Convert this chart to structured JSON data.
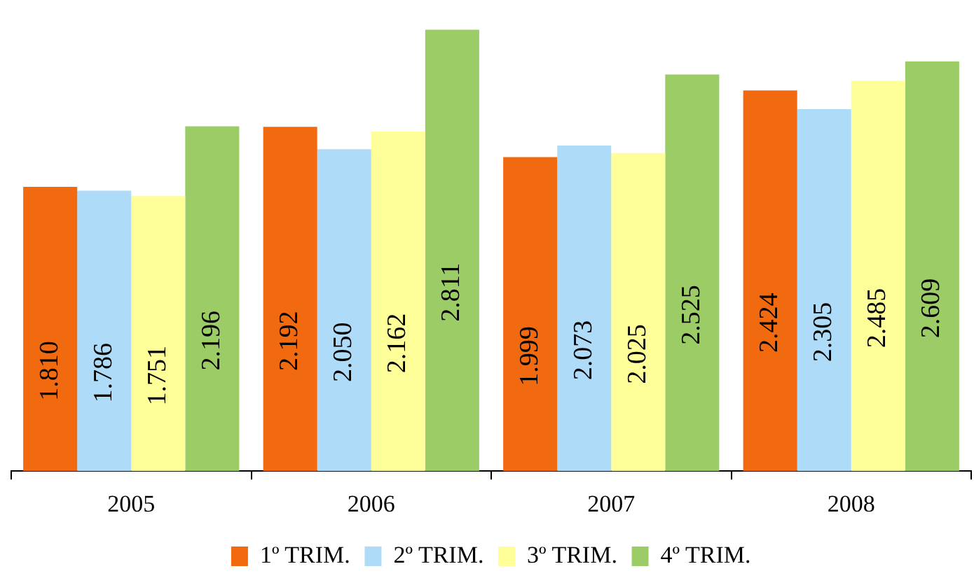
{
  "chart_data": {
    "type": "bar",
    "categories": [
      "2005",
      "2006",
      "2007",
      "2008"
    ],
    "series": [
      {
        "name": "1º TRIM.",
        "color": "#f26a10",
        "values": [
          1810,
          2192,
          1999,
          2424
        ],
        "value_labels": [
          "1.810",
          "2.192",
          "1.999",
          "2.424"
        ]
      },
      {
        "name": "2º TRIM.",
        "color": "#aedcf8",
        "values": [
          1786,
          2050,
          2073,
          2305
        ],
        "value_labels": [
          "1.786",
          "2.050",
          "2.073",
          "2.305"
        ]
      },
      {
        "name": "3º TRIM.",
        "color": "#ffff9a",
        "values": [
          1751,
          2162,
          2025,
          2485
        ],
        "value_labels": [
          "1.751",
          "2.162",
          "2.025",
          "2.485"
        ]
      },
      {
        "name": "4º TRIM.",
        "color": "#9ccc66",
        "values": [
          2196,
          2811,
          2525,
          2609
        ],
        "value_labels": [
          "2.196",
          "2.811",
          "2.525",
          "2.609"
        ]
      }
    ],
    "tick_labels": "x",
    "grid": false,
    "legend": "bottom"
  }
}
